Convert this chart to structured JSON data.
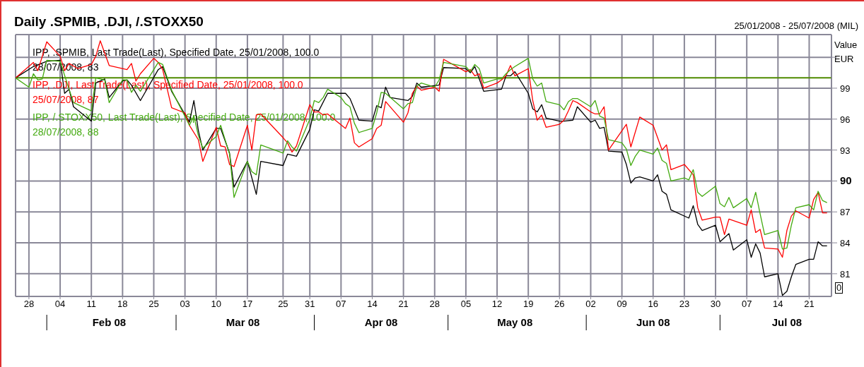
{
  "chart_data": {
    "type": "line",
    "title": "Daily .SPMIB, .DJI, /.STOXX50",
    "subtitle": "25/01/2008 - 25/07/2008 (MIL)",
    "ylabel": "Value EUR",
    "series": [
      {
        "name": "IPP, .SPMIB, Last Trade(Last), Specified Date, 25/01/2008, 100.0\n28/07/2008, 83",
        "color": "#000000",
        "x": [
          "2008-01-25",
          "2008-01-29",
          "2008-02-01",
          "2008-02-04",
          "2008-02-05",
          "2008-02-06",
          "2008-02-07",
          "2008-02-11",
          "2008-02-12",
          "2008-02-14",
          "2008-02-15",
          "2008-02-18",
          "2008-02-19",
          "2008-02-20",
          "2008-02-22",
          "2008-02-26",
          "2008-02-27",
          "2008-02-29",
          "2008-03-04",
          "2008-03-05",
          "2008-03-06",
          "2008-03-07",
          "2008-03-10",
          "2008-03-11",
          "2008-03-13",
          "2008-03-14",
          "2008-03-17",
          "2008-03-19",
          "2008-03-20",
          "2008-03-25",
          "2008-03-26",
          "2008-03-28",
          "2008-03-31",
          "2008-04-01",
          "2008-04-02",
          "2008-04-04",
          "2008-04-08",
          "2008-04-09",
          "2008-04-11",
          "2008-04-14",
          "2008-04-15",
          "2008-04-16",
          "2008-04-17",
          "2008-04-18",
          "2008-04-22",
          "2008-04-23",
          "2008-04-24",
          "2008-04-25",
          "2008-04-29",
          "2008-04-30",
          "2008-05-05",
          "2008-05-06",
          "2008-05-07",
          "2008-05-08",
          "2008-05-09",
          "2008-05-13",
          "2008-05-14",
          "2008-05-15",
          "2008-05-16",
          "2008-05-19",
          "2008-05-20",
          "2008-05-21",
          "2008-05-22",
          "2008-05-23",
          "2008-05-26",
          "2008-05-27",
          "2008-05-29",
          "2008-05-30",
          "2008-06-02",
          "2008-06-03",
          "2008-06-04",
          "2008-06-05",
          "2008-06-06",
          "2008-06-09",
          "2008-06-10",
          "2008-06-11",
          "2008-06-12",
          "2008-06-13",
          "2008-06-16",
          "2008-06-17",
          "2008-06-18",
          "2008-06-19",
          "2008-06-20",
          "2008-06-24",
          "2008-06-25",
          "2008-06-26",
          "2008-06-27",
          "2008-06-30",
          "2008-07-01",
          "2008-07-03",
          "2008-07-04",
          "2008-07-07",
          "2008-07-08",
          "2008-07-09",
          "2008-07-10",
          "2008-07-11",
          "2008-07-14",
          "2008-07-15",
          "2008-07-16",
          "2008-07-17",
          "2008-07-18",
          "2008-07-21",
          "2008-07-22",
          "2008-07-23",
          "2008-07-24",
          "2008-07-25"
        ],
        "values": [
          100.0,
          101.1,
          101.6,
          101.7,
          98.5,
          98.9,
          97.2,
          95.8,
          99.5,
          99.9,
          98.1,
          99.7,
          99.8,
          99.3,
          97.8,
          100.8,
          101.1,
          98.7,
          95.7,
          97.8,
          94.9,
          93.0,
          95.1,
          95.1,
          92.7,
          89.4,
          91.9,
          88.7,
          91.9,
          91.5,
          92.6,
          92.4,
          95.0,
          96.9,
          96.8,
          98.5,
          98.5,
          98.0,
          95.9,
          95.8,
          97.3,
          97.1,
          99.1,
          98.1,
          97.8,
          98.2,
          99.5,
          99.1,
          99.3,
          101.0,
          100.9,
          100.5,
          101.1,
          99.9,
          98.7,
          98.9,
          100.2,
          100.2,
          100.6,
          98.5,
          97.0,
          96.7,
          97.4,
          96.1,
          95.8,
          95.8,
          95.9,
          97.2,
          95.7,
          95.9,
          95.1,
          95.2,
          92.9,
          92.8,
          91.6,
          89.8,
          90.3,
          90.4,
          90.0,
          90.6,
          89.0,
          88.7,
          87.2,
          86.4,
          87.6,
          85.8,
          85.2,
          85.7,
          84.1,
          84.9,
          83.3,
          84.3,
          82.6,
          83.9,
          83.0,
          80.7,
          81.0,
          78.9,
          79.3,
          80.7,
          81.9,
          82.4,
          82.4,
          84.1,
          83.7,
          83.7
        ]
      },
      {
        "name": "IPP, .DJI, Last Trade(Last), Specified Date, 25/01/2008, 100.0\n25/07/2008, 87",
        "color": "#ff0000",
        "x": [
          "2008-01-25",
          "2008-01-29",
          "2008-01-30",
          "2008-02-01",
          "2008-02-04",
          "2008-02-05",
          "2008-02-06",
          "2008-02-08",
          "2008-02-11",
          "2008-02-12",
          "2008-02-13",
          "2008-02-15",
          "2008-02-19",
          "2008-02-20",
          "2008-02-21",
          "2008-02-22",
          "2008-02-25",
          "2008-02-26",
          "2008-02-27",
          "2008-02-29",
          "2008-03-03",
          "2008-03-04",
          "2008-03-06",
          "2008-03-07",
          "2008-03-10",
          "2008-03-11",
          "2008-03-12",
          "2008-03-13",
          "2008-03-14",
          "2008-03-17",
          "2008-03-18",
          "2008-03-19",
          "2008-03-20",
          "2008-03-25",
          "2008-03-26",
          "2008-03-27",
          "2008-03-28",
          "2008-03-31",
          "2008-04-01",
          "2008-04-02",
          "2008-04-03",
          "2008-04-04",
          "2008-04-08",
          "2008-04-09",
          "2008-04-10",
          "2008-04-11",
          "2008-04-14",
          "2008-04-15",
          "2008-04-16",
          "2008-04-17",
          "2008-04-21",
          "2008-04-22",
          "2008-04-23",
          "2008-04-24",
          "2008-04-25",
          "2008-04-28",
          "2008-04-29",
          "2008-04-30",
          "2008-05-05",
          "2008-05-06",
          "2008-05-07",
          "2008-05-08",
          "2008-05-09",
          "2008-05-12",
          "2008-05-13",
          "2008-05-14",
          "2008-05-15",
          "2008-05-16",
          "2008-05-19",
          "2008-05-20",
          "2008-05-21",
          "2008-05-22",
          "2008-05-23",
          "2008-05-26",
          "2008-05-27",
          "2008-05-28",
          "2008-05-29",
          "2008-05-30",
          "2008-06-02",
          "2008-06-03",
          "2008-06-04",
          "2008-06-05",
          "2008-06-06",
          "2008-06-10",
          "2008-06-11",
          "2008-06-13",
          "2008-06-16",
          "2008-06-18",
          "2008-06-19",
          "2008-06-20",
          "2008-06-23",
          "2008-06-25",
          "2008-06-26",
          "2008-06-27",
          "2008-06-30",
          "2008-07-01",
          "2008-07-02",
          "2008-07-03",
          "2008-07-07",
          "2008-07-08",
          "2008-07-09",
          "2008-07-10",
          "2008-07-11",
          "2008-07-14",
          "2008-07-15",
          "2008-07-16",
          "2008-07-17",
          "2008-07-18",
          "2008-07-21",
          "2008-07-22",
          "2008-07-23",
          "2008-07-24",
          "2008-07-25"
        ],
        "values": [
          100.0,
          101.5,
          100.7,
          103.5,
          102.1,
          100.7,
          101.4,
          100.9,
          101.3,
          102.1,
          103.6,
          101.2,
          100.8,
          101.4,
          99.7,
          100.4,
          101.9,
          101.5,
          100.8,
          97.1,
          96.6,
          95.4,
          94.0,
          91.9,
          95.2,
          93.4,
          93.3,
          91.6,
          91.4,
          95.4,
          93.0,
          96.4,
          96.5,
          94.2,
          93.7,
          92.8,
          93.4,
          97.4,
          96.7,
          96.7,
          96.4,
          96.5,
          95.1,
          96.1,
          93.7,
          93.3,
          94.1,
          95.1,
          95.4,
          97.7,
          95.7,
          96.6,
          98.5,
          99.2,
          98.8,
          99.1,
          98.7,
          101.8,
          100.6,
          100.8,
          100.2,
          100.4,
          99.0,
          99.5,
          99.8,
          100.2,
          101.2,
          100.2,
          100.9,
          97.8,
          95.9,
          96.4,
          95.2,
          95.5,
          95.9,
          96.8,
          97.8,
          97.6,
          96.7,
          96.5,
          96.5,
          97.2,
          93.0,
          95.5,
          93.3,
          96.2,
          95.4,
          93.0,
          93.5,
          91.1,
          91.6,
          90.6,
          87.4,
          86.2,
          86.5,
          86.5,
          84.8,
          86.3,
          85.7,
          87.2,
          85.0,
          85.3,
          83.5,
          83.4,
          82.6,
          85.2,
          86.6,
          87.1,
          86.4,
          88.2,
          88.9,
          86.9,
          86.9
        ]
      },
      {
        "name": "IPP, /.STOXX50, Last Trade(Last), Specified Date, 25/01/2008, 100.0\n28/07/2008, 88",
        "color": "#44aa11",
        "x": [
          "2008-01-25",
          "2008-01-28",
          "2008-01-29",
          "2008-01-30",
          "2008-01-31",
          "2008-02-01",
          "2008-02-04",
          "2008-02-06",
          "2008-02-07",
          "2008-02-11",
          "2008-02-12",
          "2008-02-14",
          "2008-02-15",
          "2008-02-18",
          "2008-02-19",
          "2008-02-20",
          "2008-02-21",
          "2008-02-22",
          "2008-02-26",
          "2008-02-27",
          "2008-02-29",
          "2008-03-04",
          "2008-03-05",
          "2008-03-06",
          "2008-03-07",
          "2008-03-10",
          "2008-03-11",
          "2008-03-13",
          "2008-03-14",
          "2008-03-17",
          "2008-03-18",
          "2008-03-19",
          "2008-03-20",
          "2008-03-25",
          "2008-03-26",
          "2008-03-27",
          "2008-03-28",
          "2008-03-31",
          "2008-04-01",
          "2008-04-02",
          "2008-04-03",
          "2008-04-04",
          "2008-04-07",
          "2008-04-08",
          "2008-04-09",
          "2008-04-10",
          "2008-04-11",
          "2008-04-14",
          "2008-04-15",
          "2008-04-16",
          "2008-04-17",
          "2008-04-21",
          "2008-04-22",
          "2008-04-23",
          "2008-04-24",
          "2008-04-25",
          "2008-04-28",
          "2008-04-29",
          "2008-04-30",
          "2008-05-05",
          "2008-05-06",
          "2008-05-07",
          "2008-05-08",
          "2008-05-09",
          "2008-05-12",
          "2008-05-13",
          "2008-05-14",
          "2008-05-15",
          "2008-05-16",
          "2008-05-19",
          "2008-05-20",
          "2008-05-21",
          "2008-05-22",
          "2008-05-23",
          "2008-05-26",
          "2008-05-27",
          "2008-05-28",
          "2008-05-29",
          "2008-05-30",
          "2008-06-02",
          "2008-06-03",
          "2008-06-04",
          "2008-06-05",
          "2008-06-06",
          "2008-06-09",
          "2008-06-10",
          "2008-06-11",
          "2008-06-12",
          "2008-06-13",
          "2008-06-16",
          "2008-06-17",
          "2008-06-18",
          "2008-06-19",
          "2008-06-20",
          "2008-06-23",
          "2008-06-24",
          "2008-06-25",
          "2008-06-26",
          "2008-06-27",
          "2008-06-30",
          "2008-07-01",
          "2008-07-02",
          "2008-07-03",
          "2008-07-04",
          "2008-07-07",
          "2008-07-08",
          "2008-07-09",
          "2008-07-10",
          "2008-07-11",
          "2008-07-14",
          "2008-07-15",
          "2008-07-16",
          "2008-07-17",
          "2008-07-18",
          "2008-07-21",
          "2008-07-22",
          "2008-07-23",
          "2008-07-24",
          "2008-07-25"
        ],
        "values": [
          100.0,
          99.1,
          100.4,
          99.8,
          99.9,
          101.7,
          101.6,
          98.9,
          97.6,
          96.8,
          100.0,
          99.8,
          97.6,
          99.8,
          99.8,
          98.6,
          99.3,
          98.7,
          101.5,
          101.3,
          98.8,
          95.4,
          96.3,
          94.4,
          93.2,
          94.3,
          95.4,
          92.6,
          88.4,
          91.9,
          90.9,
          90.6,
          93.5,
          92.7,
          93.9,
          93.3,
          92.9,
          96.0,
          97.8,
          97.6,
          98.1,
          98.9,
          98.1,
          97.5,
          97.2,
          95.6,
          94.7,
          95.1,
          96.6,
          98.6,
          98.5,
          97.0,
          97.5,
          97.6,
          99.2,
          99.5,
          99.1,
          99.8,
          101.5,
          101.1,
          100.6,
          101.3,
          100.9,
          99.5,
          99.9,
          99.9,
          100.4,
          100.8,
          101.1,
          101.9,
          99.9,
          99.2,
          99.5,
          97.7,
          97.4,
          96.9,
          97.7,
          98.0,
          98.0,
          97.2,
          97.8,
          96.3,
          96.1,
          94.0,
          93.7,
          93.1,
          91.5,
          92.4,
          93.0,
          92.6,
          93.2,
          92.0,
          91.7,
          90.0,
          90.3,
          90.1,
          91.1,
          88.9,
          88.5,
          89.5,
          87.8,
          87.5,
          88.4,
          87.4,
          88.3,
          87.4,
          88.9,
          86.8,
          84.8,
          85.2,
          83.4,
          83.5,
          85.7,
          87.4,
          87.7,
          87.2,
          89.0,
          88.1,
          87.9
        ]
      }
    ],
    "xlim": [
      "2008-01-25",
      "2008-07-26"
    ],
    "xticks": [
      {
        "value": "2008-01-28",
        "label": "28"
      },
      {
        "value": "2008-02-04",
        "label": "04"
      },
      {
        "value": "2008-02-11",
        "label": "11"
      },
      {
        "value": "2008-02-18",
        "label": "18"
      },
      {
        "value": "2008-02-25",
        "label": "25"
      },
      {
        "value": "2008-03-03",
        "label": "03"
      },
      {
        "value": "2008-03-10",
        "label": "10"
      },
      {
        "value": "2008-03-17",
        "label": "17"
      },
      {
        "value": "2008-03-25",
        "label": "25"
      },
      {
        "value": "2008-03-31",
        "label": "31"
      },
      {
        "value": "2008-04-07",
        "label": "07"
      },
      {
        "value": "2008-04-14",
        "label": "14"
      },
      {
        "value": "2008-04-21",
        "label": "21"
      },
      {
        "value": "2008-04-28",
        "label": "28"
      },
      {
        "value": "2008-05-05",
        "label": "05"
      },
      {
        "value": "2008-05-12",
        "label": "12"
      },
      {
        "value": "2008-05-19",
        "label": "19"
      },
      {
        "value": "2008-05-26",
        "label": "26"
      },
      {
        "value": "2008-06-02",
        "label": "02"
      },
      {
        "value": "2008-06-09",
        "label": "09"
      },
      {
        "value": "2008-06-16",
        "label": "16"
      },
      {
        "value": "2008-06-23",
        "label": "23"
      },
      {
        "value": "2008-06-30",
        "label": "30"
      },
      {
        "value": "2008-07-07",
        "label": "07"
      },
      {
        "value": "2008-07-14",
        "label": "14"
      },
      {
        "value": "2008-07-21",
        "label": "21"
      }
    ],
    "x2lim": [
      "2008-01-25",
      "2008-07-26"
    ],
    "x2ticks": [
      {
        "value": "2008-02-15",
        "label": "Feb 08"
      },
      {
        "value": "2008-03-16",
        "label": "Mar 08"
      },
      {
        "value": "2008-04-16",
        "label": "Apr 08"
      },
      {
        "value": "2008-05-16",
        "label": "May 08"
      },
      {
        "value": "2008-06-16",
        "label": "Jun 08"
      },
      {
        "value": "2008-07-16",
        "label": "Jul 08"
      }
    ],
    "ylim": [
      78.8,
      104.2
    ],
    "yticks": [
      {
        "value": 102,
        "label": null
      },
      99,
      96,
      93,
      90,
      87,
      84,
      81
    ],
    "ref_lines": [
      {
        "axis": "y",
        "value": 100,
        "label": null,
        "color": "#4f8a00"
      }
    ],
    "annotations": [
      "0"
    ],
    "grid": true,
    "legend": "top left",
    "line_style": "solid"
  }
}
